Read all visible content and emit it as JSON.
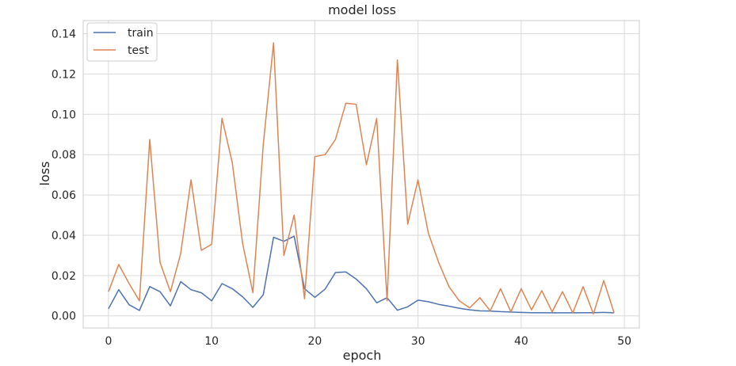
{
  "chart_data": {
    "type": "line",
    "title": "model loss",
    "xlabel": "epoch",
    "ylabel": "loss",
    "xlim": [
      -2.45,
      51.45
    ],
    "ylim": [
      -0.006,
      0.1465
    ],
    "xticks": [
      0,
      10,
      20,
      30,
      40,
      50
    ],
    "yticks": [
      0.0,
      0.02,
      0.04,
      0.06,
      0.08,
      0.1,
      0.12,
      0.14
    ],
    "ytick_labels": [
      "0.00",
      "0.02",
      "0.04",
      "0.06",
      "0.08",
      "0.10",
      "0.12",
      "0.14"
    ],
    "grid": true,
    "legend": "upper-left",
    "x": [
      0,
      1,
      2,
      3,
      4,
      5,
      6,
      7,
      8,
      9,
      10,
      11,
      12,
      13,
      14,
      15,
      16,
      17,
      18,
      19,
      20,
      21,
      22,
      23,
      24,
      25,
      26,
      27,
      28,
      29,
      30,
      31,
      32,
      33,
      34,
      35,
      36,
      37,
      38,
      39,
      40,
      41,
      42,
      43,
      44,
      45,
      46,
      47,
      48,
      49
    ],
    "series": [
      {
        "name": "train",
        "color": "#4c72b0",
        "values": [
          0.0035,
          0.013,
          0.0055,
          0.0027,
          0.0145,
          0.012,
          0.005,
          0.017,
          0.013,
          0.0115,
          0.0075,
          0.016,
          0.0135,
          0.0095,
          0.0042,
          0.0105,
          0.039,
          0.037,
          0.0395,
          0.0135,
          0.0092,
          0.0133,
          0.0215,
          0.0218,
          0.0183,
          0.0135,
          0.0065,
          0.009,
          0.0028,
          0.0045,
          0.0078,
          0.007,
          0.0057,
          0.0048,
          0.0038,
          0.003,
          0.0025,
          0.0024,
          0.0021,
          0.0019,
          0.0017,
          0.0016,
          0.0016,
          0.0015,
          0.0015,
          0.0015,
          0.0016,
          0.0016,
          0.0017,
          0.0015
        ]
      },
      {
        "name": "test",
        "color": "#dd8452",
        "values": [
          0.012,
          0.0255,
          0.016,
          0.0075,
          0.0875,
          0.0265,
          0.012,
          0.031,
          0.0675,
          0.0325,
          0.0355,
          0.098,
          0.076,
          0.036,
          0.0115,
          0.085,
          0.1355,
          0.03,
          0.05,
          0.0085,
          0.079,
          0.08,
          0.0875,
          0.1055,
          0.105,
          0.075,
          0.098,
          0.0075,
          0.127,
          0.0455,
          0.0675,
          0.041,
          0.0265,
          0.0145,
          0.0075,
          0.004,
          0.009,
          0.0025,
          0.0135,
          0.002,
          0.0135,
          0.003,
          0.0125,
          0.002,
          0.012,
          0.0015,
          0.0145,
          0.001,
          0.0175,
          0.0015
        ]
      }
    ]
  }
}
